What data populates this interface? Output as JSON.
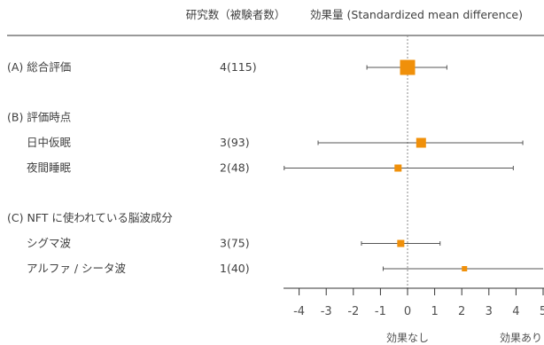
{
  "header": {
    "studies_col": "研究数（被験者数）",
    "effect_col": "効果量 (Standardized mean difference)"
  },
  "chart_data": {
    "type": "forest",
    "xlim": [
      -4,
      5
    ],
    "xticks": [
      -4,
      -3,
      -2,
      -1,
      0,
      1,
      2,
      3,
      4,
      5
    ],
    "axis_labels": {
      "left": "効果なし",
      "right": "効果あり"
    },
    "reference_line": 0,
    "marker_color": "#f0900a",
    "line_color": "#555555",
    "rows": [
      {
        "label": "(A) 総合評価",
        "n": "4(115)",
        "estimate": 0.0,
        "ci_low": -1.5,
        "ci_high": 1.45,
        "weight": "large",
        "level": "group",
        "gap_before": false
      },
      {
        "label": "(B) 評価時点",
        "level": "group",
        "gap_before": true
      },
      {
        "label": "日中仮眠",
        "n": "3(93)",
        "estimate": 0.5,
        "ci_low": -3.3,
        "ci_high": 4.25,
        "weight": "medium",
        "level": "item",
        "gap_before": false
      },
      {
        "label": "夜間睡眠",
        "n": "2(48)",
        "estimate": -0.35,
        "ci_low": -4.55,
        "ci_high": 3.9,
        "weight": "small",
        "level": "item",
        "gap_before": false
      },
      {
        "label": "(C) NFT に使われている脳波成分",
        "level": "group",
        "gap_before": true
      },
      {
        "label": "シグマ波",
        "n": "3(75)",
        "estimate": -0.25,
        "ci_low": -1.7,
        "ci_high": 1.2,
        "weight": "small",
        "level": "item",
        "gap_before": false
      },
      {
        "label": "アルファ / シータ波",
        "n": "1(40)",
        "estimate": 2.1,
        "ci_low": -0.9,
        "ci_high": 5.0,
        "weight": "tiny",
        "level": "item",
        "gap_before": false
      }
    ]
  }
}
